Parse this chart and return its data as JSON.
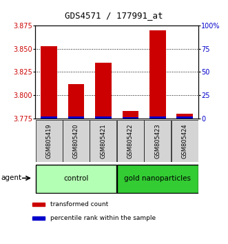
{
  "title": "GDS4571 / 177991_at",
  "samples": [
    "GSM805419",
    "GSM805420",
    "GSM805421",
    "GSM805422",
    "GSM805423",
    "GSM805424"
  ],
  "red_values": [
    3.853,
    3.812,
    3.835,
    3.783,
    3.87,
    3.78
  ],
  "blue_percentiles": [
    2.0,
    2.0,
    2.0,
    1.5,
    2.0,
    2.0
  ],
  "ylim_left": [
    3.775,
    3.875
  ],
  "ylim_right": [
    0,
    100
  ],
  "left_ticks": [
    3.775,
    3.8,
    3.825,
    3.85,
    3.875
  ],
  "right_ticks": [
    0,
    25,
    50,
    75,
    100
  ],
  "right_tick_labels": [
    "0",
    "25",
    "50",
    "75",
    "100%"
  ],
  "group_labels": [
    "control",
    "gold nanoparticles"
  ],
  "group_n": [
    3,
    3
  ],
  "group_colors": [
    "#b3ffb3",
    "#33cc33"
  ],
  "sample_bg_color": "#d4d4d4",
  "red_color": "#cc0000",
  "blue_color": "#0000cc",
  "agent_label": "agent",
  "legend_items": [
    {
      "label": "transformed count",
      "color": "#cc0000"
    },
    {
      "label": "percentile rank within the sample",
      "color": "#0000cc"
    }
  ],
  "title_fontsize": 9,
  "axis_fontsize": 7,
  "sample_fontsize": 6,
  "group_fontsize": 7.5,
  "legend_fontsize": 6.5
}
